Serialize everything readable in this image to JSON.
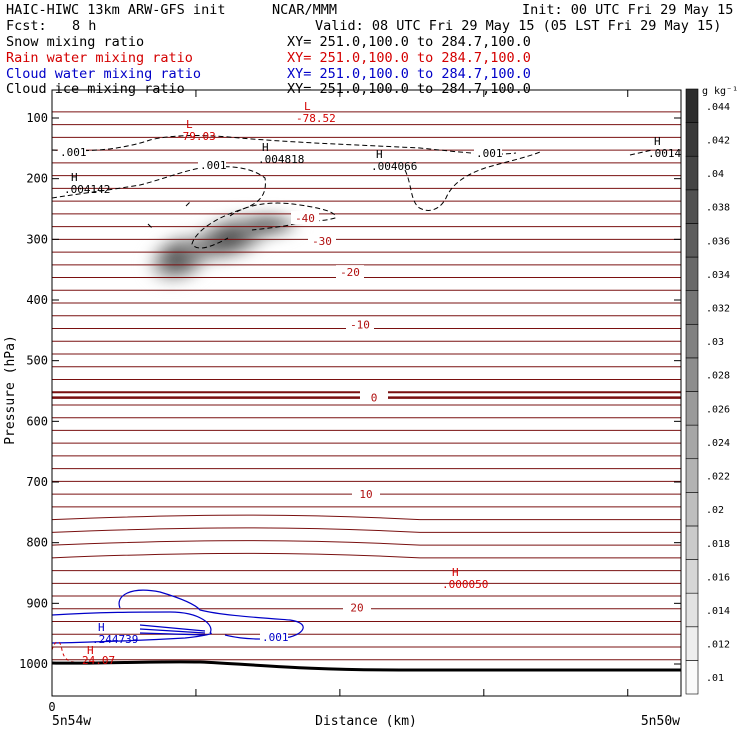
{
  "header": {
    "model_line": "HAIC-HIWC 13km ARW-GFS init",
    "org": "NCAR/MMM",
    "init": "Init: 00 UTC Fri 29 May 15",
    "fcst_label": "Fcst:",
    "fcst_value": "8 h",
    "valid": "Valid: 08 UTC Fri 29 May 15 (05 LST Fri 29 May 15)"
  },
  "fields": [
    {
      "name": "Snow mixing ratio",
      "xy": "XY= 251.0,100.0 to 284.7,100.0",
      "color": "#000000"
    },
    {
      "name": "Rain water mixing ratio",
      "xy": "XY= 251.0,100.0 to 284.7,100.0",
      "color": "#d40000"
    },
    {
      "name": "Cloud water mixing ratio",
      "xy": "XY= 251.0,100.0 to 284.7,100.0",
      "color": "#0000c8"
    },
    {
      "name": "Cloud ice mixing ratio",
      "xy": "XY= 251.0,100.0 to 284.7,100.0",
      "color": "#000000"
    }
  ],
  "chart_data": {
    "type": "cross-section",
    "ylabel": "Pressure (hPa)",
    "xlabel": "Distance (km)",
    "y_ticks": [
      100,
      200,
      300,
      400,
      500,
      600,
      700,
      800,
      900,
      1000
    ],
    "x_tick_label": "0",
    "x_endpoints": [
      "5n54w",
      "5n50w"
    ],
    "colorbar": {
      "unit": "g kg⁻¹",
      "levels": [
        ".01",
        ".012",
        ".014",
        ".016",
        ".018",
        ".02",
        ".022",
        ".024",
        ".026",
        ".028",
        ".03",
        ".032",
        ".034",
        ".036",
        ".038",
        ".04",
        ".042",
        ".044"
      ]
    },
    "temperature_contour_labels": [
      {
        "text": "-40",
        "p": 265
      },
      {
        "text": "-30",
        "p": 303
      },
      {
        "text": "-20",
        "p": 354
      },
      {
        "text": "-10",
        "p": 440
      },
      {
        "text": "0",
        "p": 561
      },
      {
        "text": "10",
        "p": 720
      },
      {
        "text": "20",
        "p": 907
      }
    ],
    "extrema": [
      {
        "kind": "L",
        "value": "-79.03",
        "field": "temperature",
        "color": "#d40000"
      },
      {
        "kind": "L",
        "value": "-78.52",
        "field": "temperature",
        "color": "#d40000"
      },
      {
        "kind": "H",
        "value": ".004818",
        "field": "cloud ice",
        "color": "#000000"
      },
      {
        "kind": "H",
        "value": ".004066",
        "field": "cloud ice",
        "color": "#000000"
      },
      {
        "kind": "H",
        "value": ".004142",
        "field": "cloud ice",
        "color": "#000000"
      },
      {
        "kind": "H",
        "value": ".0014",
        "field": "cloud ice",
        "color": "#000000"
      },
      {
        "kind": "H",
        "value": ".000050",
        "field": "rain water",
        "color": "#d40000"
      },
      {
        "kind": "H",
        "value": ".244739",
        "field": "cloud water",
        "color": "#0000c8"
      },
      {
        "kind": "H",
        "value": "24.07",
        "field": "temperature",
        "color": "#d40000"
      }
    ],
    "contour_labels": [
      {
        "text": ".001",
        "field": "cloud ice",
        "color": "#000000"
      },
      {
        "text": ".001",
        "field": "cloud ice",
        "color": "#000000"
      },
      {
        "text": ".001",
        "field": "cloud ice",
        "color": "#000000"
      },
      {
        "text": ".001",
        "field": "cloud water",
        "color": "#0000c8"
      }
    ]
  }
}
